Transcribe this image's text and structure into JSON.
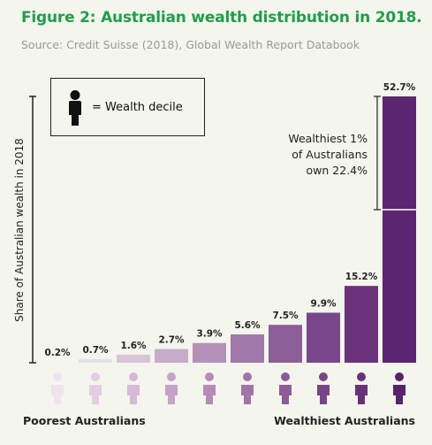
{
  "title": "Figure 2: Australian wealth distribution in 2018.",
  "subtitle": "Source: Credit Suisse (2018), Global Wealth Report Databook",
  "legend": {
    "text": "= Wealth decile",
    "icon": "person-icon"
  },
  "annotation": "Wealthiest 1%\nof Australians\nown 22.4%",
  "footer": {
    "left": "Poorest Australians",
    "right": "Wealthiest Australians"
  },
  "chart_data": {
    "type": "bar",
    "categories": [
      "1",
      "2",
      "3",
      "4",
      "5",
      "6",
      "7",
      "8",
      "9",
      "10"
    ],
    "values": [
      0.2,
      0.7,
      1.6,
      2.7,
      3.9,
      5.6,
      7.5,
      9.9,
      15.2,
      52.7
    ],
    "labels": [
      "0.2%",
      "0.7%",
      "1.6%",
      "2.7%",
      "3.9%",
      "5.6%",
      "7.5%",
      "9.9%",
      "15.2%",
      "52.7%"
    ],
    "top_1_percent_share": 22.4,
    "ylabel": "Share of Australian wealth in 2018",
    "xlabel": "",
    "ylim": [
      0,
      52.7
    ],
    "grid": false,
    "colors": [
      "#f3eef3",
      "#e7dde8",
      "#d8c4d9",
      "#c8aacb",
      "#b591ba",
      "#a077a8",
      "#8c5f98",
      "#7a478a",
      "#6a337c",
      "#5b2571"
    ],
    "icon_colors": [
      "#f0e2ef",
      "#e3cde3",
      "#d6b9d7",
      "#c6a2c9",
      "#b68bba",
      "#a274a9",
      "#8d5c98",
      "#794586",
      "#673177",
      "#56236b"
    ]
  }
}
